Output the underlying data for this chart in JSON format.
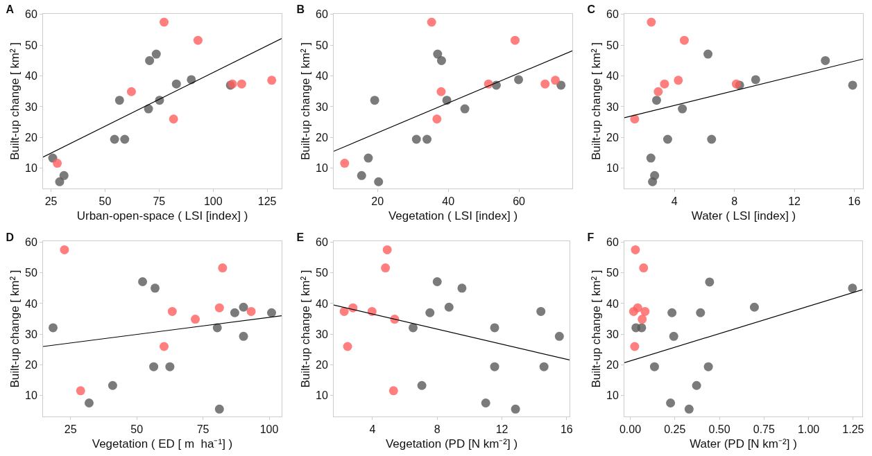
{
  "chart_data": [
    {
      "type": "scatter",
      "title": "A",
      "xlabel": "Urban-open-space ( LSI [index] )",
      "ylabel": "Built-up change [ km² ]",
      "marker": "circle",
      "xlim": [
        21.3,
        131.7
      ],
      "ylim": [
        3.4,
        60.2
      ],
      "xticks": [
        25,
        50,
        75,
        100,
        125
      ],
      "yticks": [
        10,
        20,
        30,
        40,
        50,
        60
      ],
      "series": [
        {
          "color": "#5a5a5a",
          "x": [
            25.8,
            29,
            31,
            54.4,
            59.1,
            56.7,
            70.1,
            70.6,
            73.7,
            75.2,
            83,
            89.9,
            108
          ],
          "values": [
            13.3,
            5.6,
            7.6,
            19.4,
            19.4,
            32.1,
            29.3,
            45,
            47.1,
            32.1,
            37.4,
            38.8,
            37
          ]
        },
        {
          "color": "#ff5f5f",
          "x": [
            27.9,
            62.2,
            77.3,
            81.7,
            93,
            108.9,
            113.2,
            127.1
          ],
          "values": [
            11.6,
            34.9,
            57.5,
            26,
            51.6,
            37.4,
            37.4,
            38.6
          ]
        },
        {
          "type": "line",
          "marker": "none",
          "color": "#000000",
          "x": [
            21.3,
            131.7
          ],
          "values": [
            13.6,
            52.2
          ]
        }
      ]
    },
    {
      "type": "scatter",
      "title": "B",
      "xlabel": "Vegetation ( LSI [index] )",
      "ylabel": "Built-up change [ km² ]",
      "marker": "circle",
      "xlim": [
        7.6,
        75.1
      ],
      "ylim": [
        3.4,
        60.2
      ],
      "xticks": [
        20,
        40,
        60
      ],
      "yticks": [
        10,
        20,
        30,
        40,
        50,
        60
      ],
      "series": [
        {
          "color": "#5a5a5a",
          "x": [
            17.4,
            15.5,
            20.3,
            19.2,
            31,
            34,
            37,
            38.1,
            39.6,
            44.7,
            53.6,
            59.9,
            71.9
          ],
          "values": [
            13.3,
            7.6,
            5.6,
            32.1,
            19.4,
            19.4,
            47.1,
            45,
            32.1,
            29.3,
            37,
            38.8,
            37
          ]
        },
        {
          "color": "#ff5f5f",
          "x": [
            10.7,
            35.3,
            38,
            36.8,
            51.4,
            58.9,
            67.4,
            70.3
          ],
          "values": [
            11.6,
            57.5,
            34.9,
            26,
            37.4,
            51.6,
            37.4,
            38.6
          ]
        },
        {
          "type": "line",
          "marker": "none",
          "color": "#000000",
          "x": [
            7.6,
            75.1
          ],
          "values": [
            15.5,
            48.2
          ]
        }
      ]
    },
    {
      "type": "scatter",
      "title": "C",
      "xlabel": "Water ( LSI [index] )",
      "ylabel": "Built-up change [ km² ]",
      "marker": "circle",
      "xlim": [
        0.66,
        16.58
      ],
      "ylim": [
        3.4,
        60.2
      ],
      "xticks": [
        4,
        8,
        12,
        16
      ],
      "yticks": [
        10,
        20,
        30,
        40,
        50,
        60
      ],
      "series": [
        {
          "color": "#5a5a5a",
          "x": [
            2.43,
            2.68,
            2.54,
            2.81,
            3.55,
            4.53,
            6.24,
            6.48,
            8.35,
            9.42,
            14.07,
            15.89
          ],
          "values": [
            13.3,
            7.6,
            5.6,
            32.1,
            19.4,
            29.3,
            47.1,
            19.4,
            37,
            38.8,
            45,
            37
          ]
        },
        {
          "color": "#ff5f5f",
          "x": [
            1.35,
            2.46,
            2.92,
            3.34,
            4.26,
            4.66,
            8.13
          ],
          "values": [
            26,
            57.5,
            34.9,
            37.4,
            38.6,
            51.6,
            37.4
          ]
        },
        {
          "type": "line",
          "marker": "none",
          "color": "#000000",
          "x": [
            0.66,
            16.58
          ],
          "values": [
            26.4,
            45.5
          ]
        }
      ]
    },
    {
      "type": "scatter",
      "title": "D",
      "xlabel": "Vegetation ( ED [ m  ha⁻¹] )",
      "ylabel": "Built-up change [ km² ]",
      "marker": "circle",
      "xlim": [
        14.6,
        104.7
      ],
      "ylim": [
        3.2,
        60.3
      ],
      "xticks": [
        25,
        50,
        75,
        100
      ],
      "yticks": [
        10,
        20,
        30,
        40,
        50,
        60
      ],
      "series": [
        {
          "color": "#5a5a5a",
          "x": [
            18.4,
            32,
            40.9,
            52.2,
            56.9,
            56.4,
            62.5,
            80.4,
            81.2,
            87,
            90.3,
            90.3,
            100.9
          ],
          "values": [
            32.1,
            7.6,
            13.3,
            47.1,
            45,
            19.4,
            19.4,
            32.1,
            5.6,
            37,
            38.8,
            29.3,
            37
          ]
        },
        {
          "color": "#ff5f5f",
          "x": [
            22.7,
            28.8,
            63.4,
            72.1,
            60.3,
            81.2,
            82.4,
            93.2
          ],
          "values": [
            57.5,
            11.6,
            37.4,
            34.9,
            26,
            38.6,
            51.6,
            37.4
          ]
        },
        {
          "type": "line",
          "marker": "none",
          "color": "#000000",
          "x": [
            14.6,
            104.7
          ],
          "values": [
            26,
            36
          ]
        }
      ]
    },
    {
      "type": "scatter",
      "title": "E",
      "xlabel": "Vegetation (PD [N km⁻²] )",
      "ylabel": "Built-up change [ km² ]",
      "marker": "circle",
      "xlim": [
        1.6,
        16.18
      ],
      "ylim": [
        3.2,
        60.3
      ],
      "xticks": [
        4,
        8,
        12,
        16
      ],
      "yticks": [
        10,
        20,
        30,
        40,
        50,
        60
      ],
      "series": [
        {
          "color": "#5a5a5a",
          "x": [
            6.51,
            7.05,
            7.55,
            8,
            8.73,
            9.53,
            11,
            11.55,
            11.55,
            12.84,
            14.41,
            14.6,
            15.55
          ],
          "values": [
            32.1,
            13.3,
            37,
            47.1,
            38.8,
            45,
            7.6,
            32.1,
            19.4,
            5.6,
            37.4,
            19.4,
            29.3
          ]
        },
        {
          "color": "#ff5f5f",
          "x": [
            2.25,
            2.46,
            2.79,
            3.97,
            4.8,
            4.91,
            5.37,
            5.3
          ],
          "values": [
            37.4,
            26,
            38.6,
            37.4,
            51.6,
            57.5,
            34.9,
            11.6
          ]
        },
        {
          "type": "line",
          "marker": "none",
          "color": "#000000",
          "x": [
            1.6,
            16.18
          ],
          "values": [
            39.5,
            21.6
          ]
        }
      ]
    },
    {
      "type": "scatter",
      "title": "F",
      "xlabel": "Water (PD [N km⁻²] )",
      "ylabel": "Built-up change [ km² ]",
      "marker": "circle",
      "xlim": [
        -0.033,
        1.301
      ],
      "ylim": [
        3.2,
        60.3
      ],
      "xticks": [
        {
          "value": 0,
          "label": "0.00"
        },
        0.25,
        {
          "value": 0.5,
          "label": "0.50"
        },
        0.75,
        {
          "value": 1,
          "label": "1.00"
        },
        1.25
      ],
      "yticks": [
        10,
        20,
        30,
        40,
        50,
        60
      ],
      "series": [
        {
          "color": "#5a5a5a",
          "x": [
            0.032,
            0.064,
            0.136,
            0.226,
            0.234,
            0.244,
            0.33,
            0.372,
            0.394,
            0.445,
            0.438,
            0.696,
            1.246
          ],
          "values": [
            32.1,
            32.1,
            19.4,
            7.6,
            37,
            29.3,
            5.6,
            13.3,
            37,
            47,
            19.4,
            38.8,
            45
          ]
        },
        {
          "color": "#ff5f5f",
          "x": [
            0.029,
            0.075,
            0.019,
            0.042,
            0.083,
            0.067,
            0.025
          ],
          "values": [
            57.5,
            51.6,
            37.4,
            38.6,
            37.4,
            34.9,
            26
          ]
        },
        {
          "type": "line",
          "marker": "none",
          "color": "#000000",
          "x": [
            -0.033,
            1.301
          ],
          "values": [
            20.7,
            44.5
          ]
        }
      ]
    }
  ]
}
